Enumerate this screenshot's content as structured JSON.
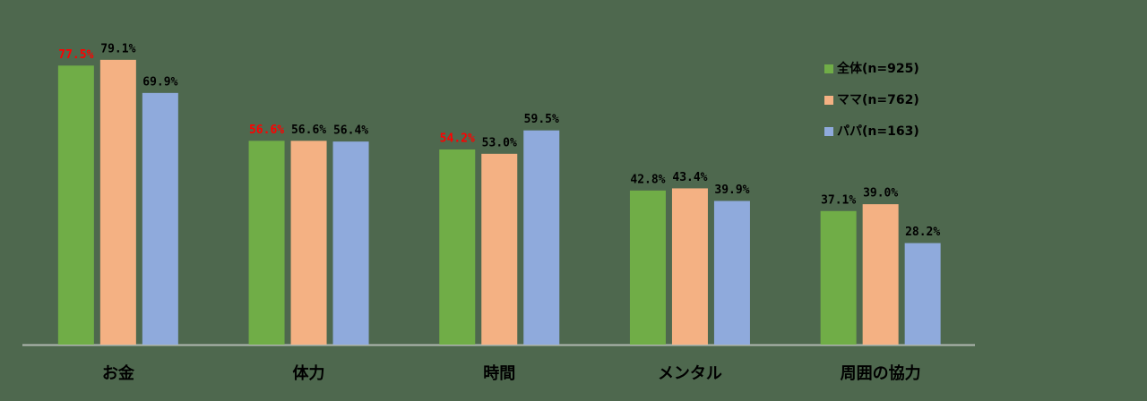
{
  "chart_data": {
    "type": "bar",
    "categories": [
      "お金",
      "体力",
      "時間",
      "メンタル",
      "周囲の協力"
    ],
    "series": [
      {
        "name": "全体(n=925)",
        "color": "#70ad47",
        "values": [
          77.5,
          56.6,
          54.2,
          42.8,
          37.1
        ],
        "value_labels": [
          "77.5%",
          "56.6%",
          "54.2%",
          "42.8%",
          "37.1%"
        ],
        "value_label_colors": [
          "#ff0000",
          "#ff0000",
          "#ff0000",
          "#000000",
          "#000000"
        ]
      },
      {
        "name": "ママ(n=762)",
        "color": "#f4b183",
        "values": [
          79.1,
          56.6,
          53.0,
          43.4,
          39.0
        ],
        "value_labels": [
          "79.1%",
          "56.6%",
          "53.0%",
          "43.4%",
          "39.0%"
        ],
        "value_label_colors": [
          "#000000",
          "#000000",
          "#000000",
          "#000000",
          "#000000"
        ]
      },
      {
        "name": "パパ(n=163)",
        "color": "#8faadc",
        "values": [
          69.9,
          56.4,
          59.5,
          39.9,
          28.2
        ],
        "value_labels": [
          "69.9%",
          "56.4%",
          "59.5%",
          "39.9%",
          "28.2%"
        ],
        "value_label_colors": [
          "#000000",
          "#000000",
          "#000000",
          "#000000",
          "#000000"
        ]
      }
    ],
    "ylim": [
      0,
      90
    ],
    "grid": false,
    "legend": "top-right"
  }
}
